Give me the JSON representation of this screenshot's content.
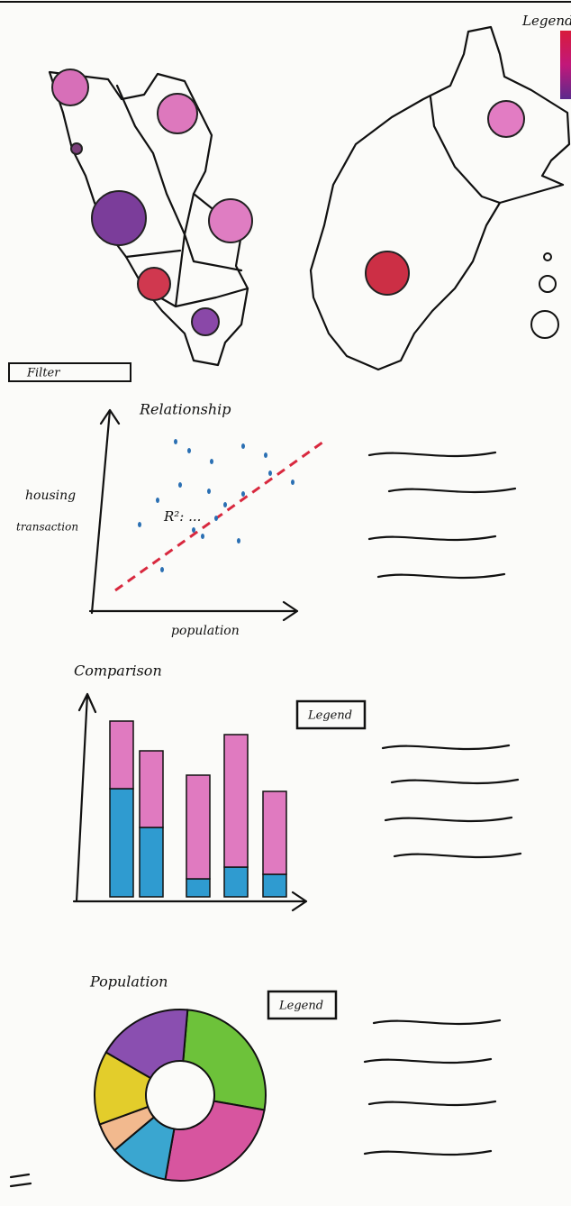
{
  "map": {
    "legend": "Legend"
  },
  "filter": {
    "label": "Filter"
  },
  "relationship": {
    "title": "Relationship",
    "y_label_line1": "housing",
    "y_label_line2": "transaction",
    "x_label": "population",
    "annotation": "R²: ..."
  },
  "comparison": {
    "title": "Comparison",
    "legend": "Legend"
  },
  "population": {
    "title": "Population",
    "legend": "Legend"
  }
}
